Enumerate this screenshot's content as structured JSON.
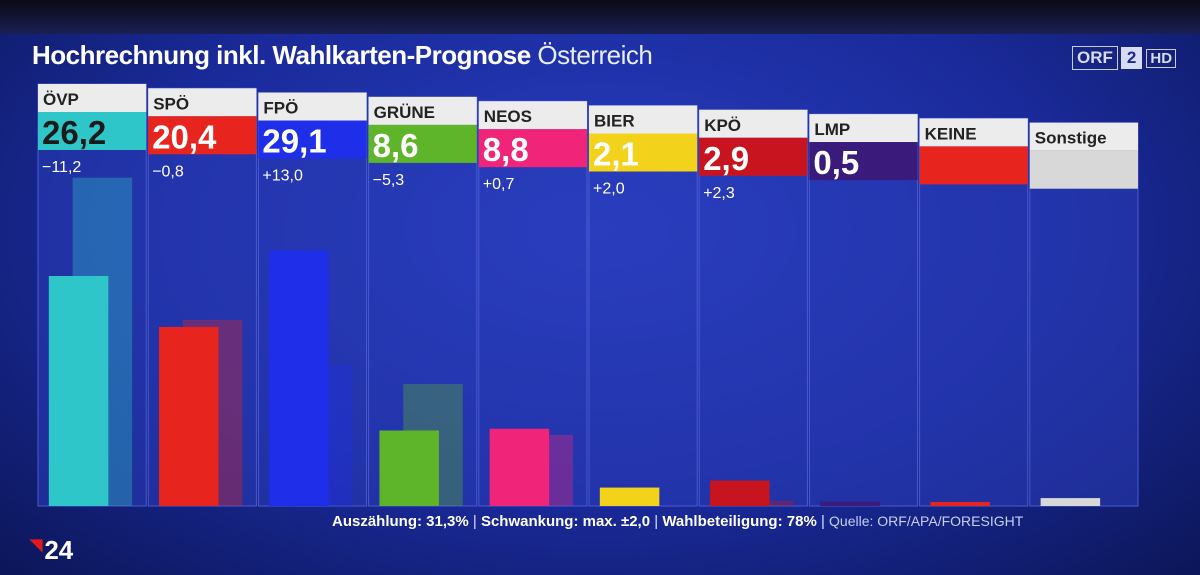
{
  "header": {
    "title": "Hochrechnung inkl. Wahlkarten-Prognose",
    "subtitle": "Österreich"
  },
  "logo": {
    "orf": "ORF",
    "two": "2",
    "hd": "HD"
  },
  "chart_data": {
    "type": "bar",
    "categories": [
      "ÖVP",
      "SPÖ",
      "FPÖ",
      "GRÜNE",
      "NEOS",
      "BIER",
      "KPÖ",
      "LMP",
      "KEINE",
      "Sonstige"
    ],
    "value_labels": [
      "26,2",
      "20,4",
      "29,1",
      "8,6",
      "8,8",
      "2,1",
      "2,9",
      "0,5",
      "",
      ""
    ],
    "change_labels": [
      "−11,2",
      "−0,8",
      "+13,0",
      "−5,3",
      "+0,7",
      "+2,0",
      "+2,3",
      "",
      "",
      ""
    ],
    "series": [
      {
        "values": [
          26.2,
          20.4,
          29.1,
          8.6,
          8.8,
          2.1,
          2.9,
          0.5,
          0.2,
          0.9
        ]
      },
      {
        "values": [
          37.4,
          21.2,
          16.1,
          13.9,
          8.1,
          0.0,
          0.6,
          0.0,
          0.0,
          0.0
        ]
      }
    ],
    "colors": [
      "#2ec6c8",
      "#e8241f",
      "#1f2ee8",
      "#5fb52a",
      "#f0257a",
      "#f2d21a",
      "#c8141e",
      "#3a1a7a",
      "#e8241f",
      "#d8d8d8"
    ],
    "ylim": [
      0,
      40
    ],
    "footer": {
      "auszaehlung": "Auszählung: 31,3%",
      "schwankung": "Schwankung: max. ±2,0",
      "wahlbeteiligung": "Wahlbeteiligung: 78%",
      "quelle": "Quelle: ORF/APA/FORESIGHT"
    }
  },
  "channel": {
    "label": "24"
  }
}
